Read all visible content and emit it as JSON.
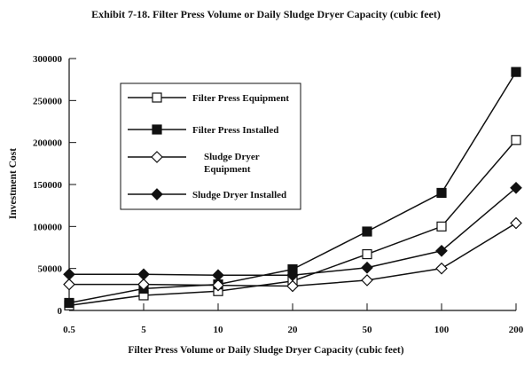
{
  "chart_data": {
    "type": "line",
    "title": "Exhibit 7-18. Filter Press Volume or Daily Sludge Dryer Capacity (cubic feet)",
    "xlabel": "Filter Press Volume or Daily Sludge Dryer Capacity (cubic feet)",
    "ylabel": "Investment Cost",
    "categories": [
      "0.5",
      "5",
      "10",
      "20",
      "50",
      "100",
      "200"
    ],
    "ylim": [
      0,
      300000
    ],
    "yticks": [
      "0",
      "50000",
      "100000",
      "150000",
      "200000",
      "250000",
      "300000"
    ],
    "grid": false,
    "legend_position": "upper-left",
    "series": [
      {
        "name": "Filter Press Equipment",
        "marker": "open-square",
        "values": [
          6000,
          18000,
          23000,
          35000,
          67000,
          100000,
          203000
        ]
      },
      {
        "name": "Filter Press Installed",
        "marker": "filled-square",
        "values": [
          9000,
          26000,
          31000,
          49000,
          94000,
          140000,
          284000
        ]
      },
      {
        "name": "Sludge Dryer Equipment",
        "legend_lines": [
          "Sludge Dryer",
          "Equipment"
        ],
        "marker": "open-diamond",
        "values": [
          31000,
          31000,
          30000,
          29000,
          36000,
          50000,
          104000
        ]
      },
      {
        "name": "Sludge Dryer Installed",
        "marker": "filled-diamond",
        "values": [
          43000,
          43000,
          42000,
          42000,
          51000,
          71000,
          146000
        ]
      }
    ]
  }
}
